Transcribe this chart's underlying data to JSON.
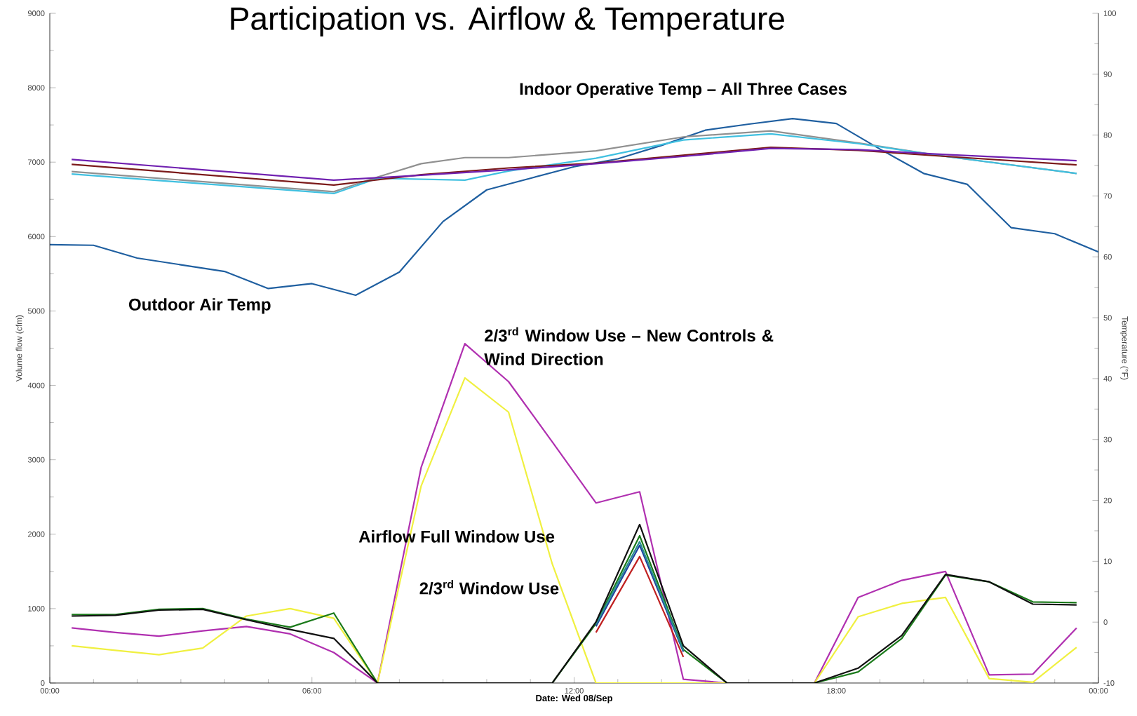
{
  "chart_data": {
    "type": "line",
    "title": "Participation vs. Airflow & Temperature",
    "xlabel": "Date: Wed 08/Sep",
    "ylabel": "Volume flow (cfm)",
    "y2label": "Temperature (°F)",
    "annotations": [
      "Indoor Operative Temp – All Three Cases",
      "Outdoor Air Temp",
      "2/3$^{rd}$ Window Use – New Controls & Wind Direction",
      "Airflow Full Window Use",
      "2/3$^{rd}$ Window Use"
    ],
    "xlim": [
      0,
      24
    ],
    "xticks": [
      {
        "value": 0,
        "label": "00:00"
      },
      {
        "value": 6,
        "label": "06:00"
      },
      {
        "value": 12,
        "label": "12:00"
      },
      {
        "value": 18,
        "label": "18:00"
      },
      {
        "value": 24,
        "label": "00:00"
      }
    ],
    "ylim": [
      0,
      9000
    ],
    "yticks": [
      0,
      1000,
      2000,
      3000,
      4000,
      5000,
      6000,
      7000,
      8000,
      9000
    ],
    "y2lim": [
      -10,
      100
    ],
    "y2ticks": [
      -10,
      0,
      10,
      20,
      30,
      40,
      50,
      60,
      70,
      80,
      90,
      100
    ],
    "x": [
      0.5,
      1.5,
      2.5,
      3.5,
      4.5,
      5.5,
      6.5,
      7.5,
      8.5,
      9.5,
      10.5,
      11.5,
      12.5,
      13.5,
      14.5,
      15.5,
      16.5,
      17.5,
      18.5,
      19.5,
      20.5,
      21.5,
      22.5,
      23.5
    ],
    "series": [
      {
        "color": "#b030b0",
        "values": [
          740,
          680,
          630,
          700,
          760,
          660,
          410,
          0,
          2900,
          4560,
          4050,
          3240,
          2420,
          2570,
          50,
          0,
          0,
          0,
          1150,
          1380,
          1500,
          110,
          120,
          740
        ]
      },
      {
        "color": "#f0f040",
        "values": [
          500,
          440,
          380,
          470,
          900,
          1000,
          870,
          0,
          2650,
          4100,
          3640,
          1600,
          0,
          0,
          0,
          0,
          0,
          0,
          890,
          1070,
          1150,
          60,
          10,
          480
        ]
      },
      {
        "color": "#1a7a1a",
        "values": [
          920,
          920,
          990,
          1000,
          860,
          750,
          940,
          0,
          0,
          0,
          0,
          0,
          800,
          1980,
          450,
          0,
          0,
          0,
          150,
          600,
          1450,
          1360,
          1090,
          1080
        ]
      },
      {
        "color": "#c02020",
        "values": [
          null,
          null,
          null,
          null,
          null,
          null,
          null,
          null,
          null,
          null,
          null,
          null,
          680,
          1700,
          350,
          null,
          null,
          null,
          null,
          null,
          null,
          null,
          null,
          null
        ]
      },
      {
        "color": "#1f3fa0",
        "values": [
          null,
          null,
          null,
          null,
          null,
          null,
          null,
          null,
          null,
          null,
          null,
          null,
          760,
          1850,
          420,
          null,
          null,
          null,
          null,
          null,
          null,
          null,
          null,
          null
        ]
      },
      {
        "color": "#2a9090",
        "values": [
          null,
          null,
          null,
          null,
          null,
          null,
          null,
          null,
          null,
          null,
          null,
          null,
          790,
          1900,
          440,
          null,
          null,
          null,
          null,
          null,
          null,
          null,
          null,
          null
        ]
      },
      {
        "color": "#101010",
        "values": [
          900,
          910,
          980,
          990,
          850,
          720,
          600,
          0,
          0,
          0,
          0,
          0,
          820,
          2130,
          500,
          0,
          0,
          0,
          200,
          640,
          1460,
          1360,
          1060,
          1050
        ]
      },
      {
        "axis": "y2",
        "color": "#1f5fa0",
        "x": [
          0,
          1,
          2,
          3,
          4,
          5,
          6,
          7,
          8,
          9,
          10,
          11,
          12,
          13,
          14,
          15,
          16,
          17,
          18,
          19,
          20,
          21,
          22,
          23,
          24
        ],
        "values": [
          62.0,
          61.9,
          59.8,
          58.7,
          57.6,
          54.8,
          55.6,
          53.7,
          57.5,
          65.8,
          71.0,
          72.9,
          74.8,
          76.1,
          78.3,
          80.8,
          81.8,
          82.7,
          81.9,
          77.7,
          73.7,
          71.9,
          64.8,
          63.8,
          60.8
        ]
      },
      {
        "axis": "y2",
        "color": "#909090",
        "x": [
          0.5,
          6.5,
          7.5,
          8.5,
          9.5,
          10.5,
          12.5,
          14.5,
          16.5,
          18.5,
          20.5,
          23.5
        ],
        "values": [
          74.0,
          70.7,
          73.1,
          75.3,
          76.3,
          76.3,
          77.4,
          79.7,
          80.7,
          78.7,
          76.5,
          73.7
        ]
      },
      {
        "axis": "y2",
        "color": "#40c0e0",
        "x": [
          0.5,
          6.5,
          7.5,
          9.5,
          10.5,
          12.5,
          14.5,
          16.5,
          18.5,
          20.5,
          23.5
        ],
        "values": [
          73.6,
          70.4,
          72.9,
          72.6,
          74.1,
          76.2,
          79.2,
          80.2,
          78.6,
          76.5,
          73.7
        ]
      },
      {
        "axis": "y2",
        "color": "#7b1a1a",
        "x": [
          0.5,
          6.5,
          8.5,
          10.5,
          12.5,
          14.5,
          16.5,
          18.5,
          20.5,
          23.5
        ],
        "values": [
          75.2,
          71.8,
          73.5,
          74.6,
          75.4,
          76.7,
          78.0,
          77.5,
          76.5,
          75.1
        ]
      },
      {
        "axis": "y2",
        "color": "#7020b0",
        "x": [
          0.5,
          6.5,
          8.5,
          10.5,
          12.5,
          14.5,
          16.5,
          18.5,
          20.5,
          23.5
        ],
        "values": [
          76.0,
          72.6,
          73.4,
          74.3,
          75.3,
          76.5,
          77.8,
          77.6,
          76.8,
          75.8
        ]
      }
    ]
  }
}
